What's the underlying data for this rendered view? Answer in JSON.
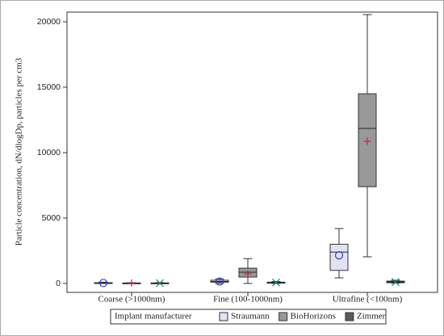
{
  "chart_data": {
    "type": "box",
    "y_label": "Particle concentration, dN/dlogDp, particles per cm3",
    "categories": [
      "Coarse (>1000nm)",
      "Fine (100-1000nm)",
      "Ultrafine (<100nm)"
    ],
    "ylim": [
      -680,
      20740
    ],
    "yticks": [
      0,
      5000,
      10000,
      15000,
      20000
    ],
    "legend_title": "Implant manufacturer",
    "legend_position": "bottom",
    "series": [
      {
        "name": "Straumann",
        "color": "#e2e2f2",
        "marker": "circle",
        "marker_color": "#3a3ad0",
        "boxes": [
          {
            "min": 0,
            "q1": 10,
            "median": 30,
            "q3": 60,
            "max": 100,
            "mean": 40
          },
          {
            "min": 0,
            "q1": 100,
            "median": 150,
            "q3": 250,
            "max": 350,
            "mean": 150
          },
          {
            "min": 430,
            "q1": 1000,
            "median": 2400,
            "q3": 3000,
            "max": 4200,
            "mean": 2150
          }
        ]
      },
      {
        "name": "BioHorizons",
        "color": "#999999",
        "marker": "plus",
        "marker_color": "#d0203a",
        "boxes": [
          {
            "min": 0,
            "q1": 10,
            "median": 20,
            "q3": 40,
            "max": 60,
            "mean": 25
          },
          {
            "min": 0,
            "q1": 490,
            "median": 860,
            "q3": 1170,
            "max": 1900,
            "mean": 740
          },
          {
            "min": 2040,
            "q1": 7400,
            "median": 11850,
            "q3": 14500,
            "max": 20550,
            "mean": 10870
          }
        ]
      },
      {
        "name": "Zimmer",
        "color": "#5a5a5a",
        "marker": "x",
        "marker_color": "#1a8a7a",
        "boxes": [
          {
            "min": 0,
            "q1": 10,
            "median": 20,
            "q3": 40,
            "max": 70,
            "mean": 30
          },
          {
            "min": 0,
            "q1": 30,
            "median": 60,
            "q3": 100,
            "max": 150,
            "mean": 70
          },
          {
            "min": 30,
            "q1": 60,
            "median": 120,
            "q3": 180,
            "max": 250,
            "mean": 110
          }
        ]
      }
    ]
  }
}
